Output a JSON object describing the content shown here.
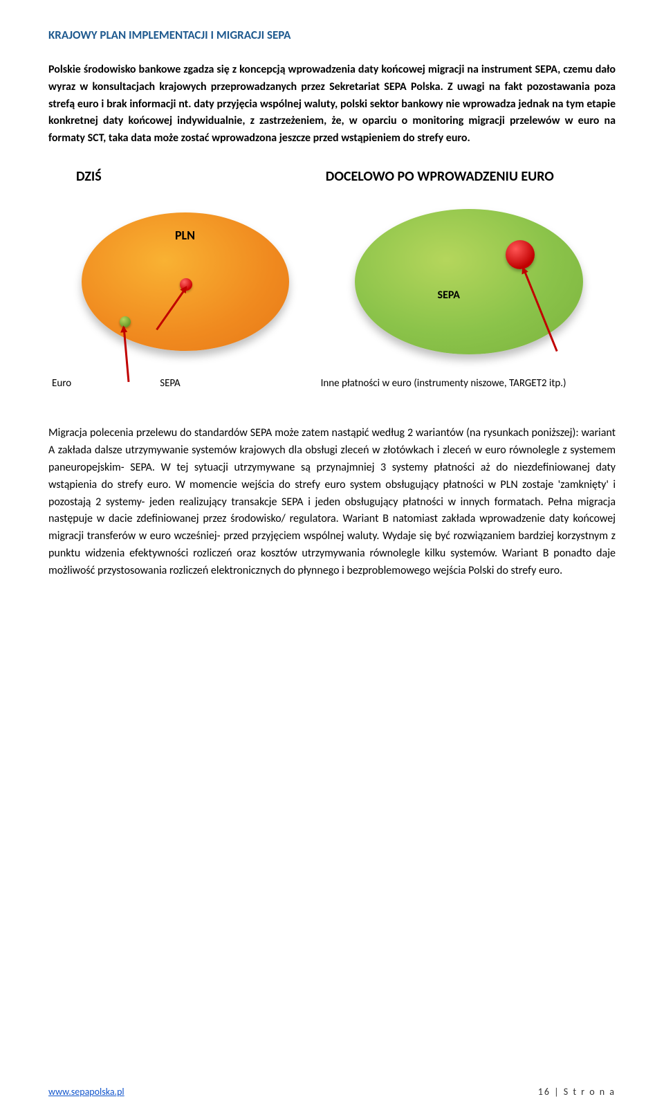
{
  "header": {
    "title": "KRAJOWY PLAN IMPLEMENTACJI I MIGRACJI SEPA"
  },
  "para1": {
    "bold_a": "Polskie środowisko bankowe zgadza się z koncepcją wprowadzenia daty końcowej migracji na instrument SEPA, czemu dało wyraz w konsultacjach krajowych przeprowadzanych przez Sekretariat SEPA Polska. Z uwagi na fakt pozostawania poza strefą euro i brak informacji nt. daty przyjęcia wspólnej waluty, polski sektor bankowy nie wprowadza jednak na tym etapie konkretnej daty końcowej indywidualnie, z zastrzeżeniem, że, w oparciu o monitoring migracji przelewów w euro na formaty SCT, taka data może zostać wprowadzona jeszcze przed wstąpieniem do strefy euro."
  },
  "diagram": {
    "title_left": "DZIŚ",
    "title_right": "DOCELOWO PO WPROWADZENIU EURO",
    "label_pln": "PLN",
    "label_sepa": "SEPA",
    "caption_euro": "Euro",
    "caption_sepa": "SEPA",
    "caption_other": "Inne płatności w euro (instrumenty niszowe, TARGET2 itp.)",
    "colors": {
      "orange_grad": [
        "#f9b233",
        "#f08a1f",
        "#e67817"
      ],
      "green_grad": [
        "#b5d65c",
        "#8bc34a",
        "#7ab23d"
      ],
      "red_dot": "#c00000",
      "arrow": "#c00000"
    }
  },
  "para2": {
    "text": "Migracja polecenia przelewu do standardów SEPA może zatem nastąpić według 2 wariantów (na rysunkach poniższej): wariant A zakłada dalsze utrzymywanie systemów krajowych dla obsługi zleceń w złotówkach i zleceń w euro równolegle z systemem paneuropejskim- SEPA. W tej sytuacji utrzymywane są przynajmniej 3 systemy płatności aż do niezdefiniowanej daty wstąpienia do strefy euro. W momencie wejścia do strefy euro system obsługujący płatności w PLN zostaje 'zamknięty' i pozostają 2 systemy- jeden realizujący transakcje SEPA i jeden obsługujący płatności w innych formatach. Pełna migracja następuje w dacie zdefiniowanej przez środowisko/ regulatora. Wariant B natomiast zakłada wprowadzenie daty końcowej migracji transferów w euro wcześniej- przed przyjęciem wspólnej waluty. Wydaje się być rozwiązaniem bardziej korzystnym z punktu widzenia efektywności rozliczeń oraz kosztów utrzymywania równolegle kilku systemów. Wariant B ponadto daje możliwość przystosowania rozliczeń elektronicznych do płynnego i bezproblemowego wejścia Polski do strefy euro."
  },
  "footer": {
    "url": "www.sepapolska.pl",
    "page": "16 | S t r o n a"
  }
}
